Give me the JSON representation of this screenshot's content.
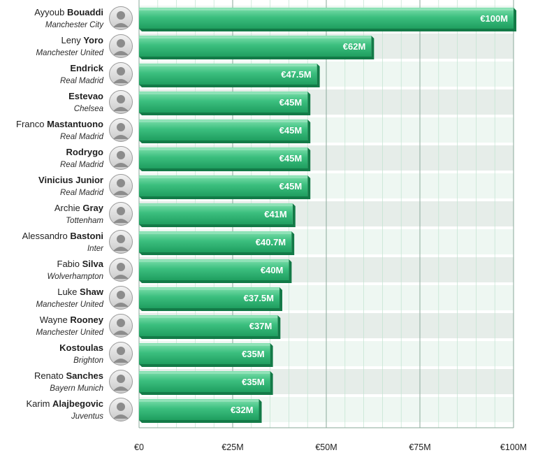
{
  "chart_data": {
    "type": "bar",
    "orientation": "horizontal",
    "title": "",
    "xlabel": "",
    "ylabel": "",
    "xlim": [
      0,
      100
    ],
    "x_ticks": [
      {
        "value": 0,
        "label": "€0"
      },
      {
        "value": 25,
        "label": "€25M"
      },
      {
        "value": 50,
        "label": "€50M"
      },
      {
        "value": 75,
        "label": "€75M"
      },
      {
        "value": 100,
        "label": "€100M"
      }
    ],
    "bars": [
      {
        "first": "Ayyoub",
        "last": "Bouaddi",
        "club": "Manchester City",
        "value": 100,
        "label": "€100M"
      },
      {
        "first": "Leny",
        "last": "Yoro",
        "club": "Manchester United",
        "value": 62,
        "label": "€62M"
      },
      {
        "first": "",
        "last": "Endrick",
        "club": "Real Madrid",
        "value": 47.5,
        "label": "€47.5M"
      },
      {
        "first": "",
        "last": "Estevao",
        "club": "Chelsea",
        "value": 45,
        "label": "€45M"
      },
      {
        "first": "Franco",
        "last": "Mastantuono",
        "club": "Real Madrid",
        "value": 45,
        "label": "€45M"
      },
      {
        "first": "",
        "last": "Rodrygo",
        "club": "Real Madrid",
        "value": 45,
        "label": "€45M"
      },
      {
        "first": "",
        "last": "Vinicius Junior",
        "club": "Real Madrid",
        "value": 45,
        "label": "€45M"
      },
      {
        "first": "Archie",
        "last": "Gray",
        "club": "Tottenham",
        "value": 41,
        "label": "€41M"
      },
      {
        "first": "Alessandro",
        "last": "Bastoni",
        "club": "Inter",
        "value": 40.7,
        "label": "€40.7M"
      },
      {
        "first": "Fabio",
        "last": "Silva",
        "club": "Wolverhampton",
        "value": 40,
        "label": "€40M"
      },
      {
        "first": "Luke",
        "last": "Shaw",
        "club": "Manchester United",
        "value": 37.5,
        "label": "€37.5M"
      },
      {
        "first": "Wayne",
        "last": "Rooney",
        "club": "Manchester United",
        "value": 37,
        "label": "€37M"
      },
      {
        "first": "",
        "last": "Kostoulas",
        "club": "Brighton",
        "value": 35,
        "label": "€35M"
      },
      {
        "first": "Renato",
        "last": "Sanches",
        "club": "Bayern Munich",
        "value": 35,
        "label": "€35M"
      },
      {
        "first": "Karim",
        "last": "Alajbegovic",
        "club": "Juventus",
        "value": 32,
        "label": "€32M"
      }
    ],
    "grid": true,
    "legend": "none",
    "colors": {
      "bar_top": "#7fe0ad",
      "bar_mid": "#3cbf7f",
      "bar_bottom": "#1f9e5f",
      "bar_side": "#137a47",
      "row_band_light": "#eef7f2",
      "row_band_dark": "#e6ede9",
      "grid": "#bfe3cf",
      "axis": "#8aa99a"
    }
  }
}
